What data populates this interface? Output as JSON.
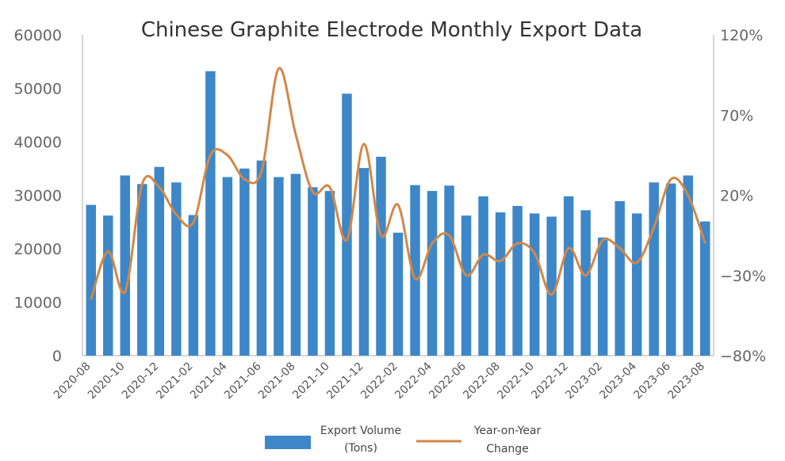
{
  "chart_data": {
    "type": "bar",
    "title": "Chinese Graphite Electrode Monthly Export Data",
    "categories": [
      "2020-08",
      "2020-09",
      "2020-10",
      "2020-11",
      "2020-12",
      "2021-01",
      "2021-02",
      "2021-03",
      "2021-04",
      "2021-05",
      "2021-06",
      "2021-07",
      "2021-08",
      "2021-09",
      "2021-10",
      "2021-11",
      "2021-12",
      "2022-01",
      "2022-02",
      "2022-03",
      "2022-04",
      "2022-05",
      "2022-06",
      "2022-07",
      "2022-08",
      "2022-09",
      "2022-10",
      "2022-11",
      "2022-12",
      "2023-01",
      "2023-02",
      "2023-03",
      "2023-04",
      "2023-05",
      "2023-06",
      "2023-07",
      "2023-08"
    ],
    "x_tick_labels": [
      "2020-08",
      "2020-10",
      "2020-12",
      "2021-02",
      "2021-04",
      "2021-06",
      "2021-08",
      "2021-10",
      "2021-12",
      "2022-02",
      "2022-04",
      "2022-06",
      "2022-08",
      "2022-10",
      "2022-12",
      "2023-02",
      "2023-04",
      "2023-06",
      "2023-08"
    ],
    "y_left": {
      "min": 0,
      "max": 60000,
      "ticks": [
        "0",
        "10000",
        "20000",
        "30000",
        "40000",
        "50000",
        "60000"
      ]
    },
    "y_right": {
      "min": -80,
      "max": 120,
      "ticks": [
        "-80%",
        "-30%",
        "20%",
        "70%",
        "120%"
      ]
    },
    "series": [
      {
        "name": "Export Volume (Tons)",
        "name_lines": [
          "Export Volume",
          "(Tons)"
        ],
        "type": "bar",
        "axis": "left",
        "color": "#3d87c8",
        "values": [
          28200,
          26200,
          33700,
          32100,
          35300,
          32400,
          26300,
          53200,
          33400,
          35000,
          36500,
          33400,
          34000,
          31500,
          30800,
          49000,
          35100,
          37200,
          23000,
          31900,
          30800,
          31800,
          26200,
          29800,
          26800,
          28000,
          26600,
          26000,
          29800,
          27200,
          22100,
          28900,
          26600,
          32400,
          32200,
          33700,
          25100
        ]
      },
      {
        "name": "Year-on-Year Change",
        "name_lines": [
          "Year-on-Year",
          "Change"
        ],
        "type": "line",
        "axis": "right",
        "color": "#d28848",
        "values": [
          -45,
          -15,
          -40,
          27,
          25,
          8,
          3,
          45,
          45,
          30,
          35,
          99,
          58,
          22,
          25,
          -8,
          52,
          -5,
          14,
          -32,
          -10,
          -5,
          -30,
          -17,
          -21,
          -10,
          -16,
          -42,
          -13,
          -30,
          -8,
          -13,
          -22,
          0,
          30,
          20,
          -10
        ]
      }
    ],
    "legend_position": "bottom",
    "grid": false
  }
}
